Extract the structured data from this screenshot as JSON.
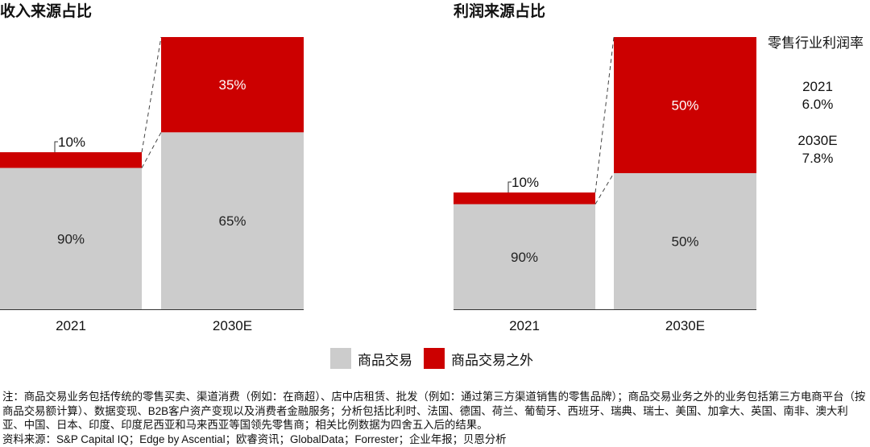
{
  "colors": {
    "goods": "#cccccc",
    "non_goods": "#cc0000"
  },
  "chart_data": [
    {
      "type": "bar",
      "stacked": true,
      "title": "收入来源占比",
      "categories": [
        "2021",
        "2030E"
      ],
      "series": [
        {
          "name": "商品交易",
          "values": [
            90,
            65
          ]
        },
        {
          "name": "商品交易之外",
          "values": [
            10,
            35
          ]
        }
      ],
      "data_labels": [
        [
          "90%",
          "10%"
        ],
        [
          "65%",
          "35%"
        ]
      ]
    },
    {
      "type": "bar",
      "stacked": true,
      "title": "利润来源占比",
      "categories": [
        "2021",
        "2030E"
      ],
      "series": [
        {
          "name": "商品交易",
          "values": [
            90,
            50
          ]
        },
        {
          "name": "商品交易之外",
          "values": [
            10,
            50
          ]
        }
      ],
      "data_labels": [
        [
          "90%",
          "10%"
        ],
        [
          "50%",
          "50%"
        ]
      ]
    }
  ],
  "legend": {
    "placement": "bottom",
    "items": [
      "商品交易",
      "商品交易之外"
    ]
  },
  "side_panel": {
    "title": "零售行业利润率",
    "entries": [
      {
        "year": "2021",
        "value": "6.0%"
      },
      {
        "year": "2030E",
        "value": "7.8%"
      }
    ]
  },
  "note": "注：商品交易业务包括传统的零售买卖、渠道消费（例如：在商超）、店中店租赁、批发（例如：通过第三方渠道销售的零售品牌）；商品交易业务之外的业务包括第三方电商平台（按商品交易额计算）、数据变现、B2B客户资产变现以及消费者金融服务；分析包括比利时、法国、德国、荷兰、葡萄牙、西班牙、瑞典、瑞士、美国、加拿大、英国、南非、澳大利亚、中国、日本、印度、印度尼西亚和马来西亚等国领先零售商；相关比例数据为四舍五入后的结果。",
  "source": "资料来源：S&P Capital IQ；Edge by Ascential；欧睿资讯；GlobalData；Forrester；企业年报；贝恩分析"
}
